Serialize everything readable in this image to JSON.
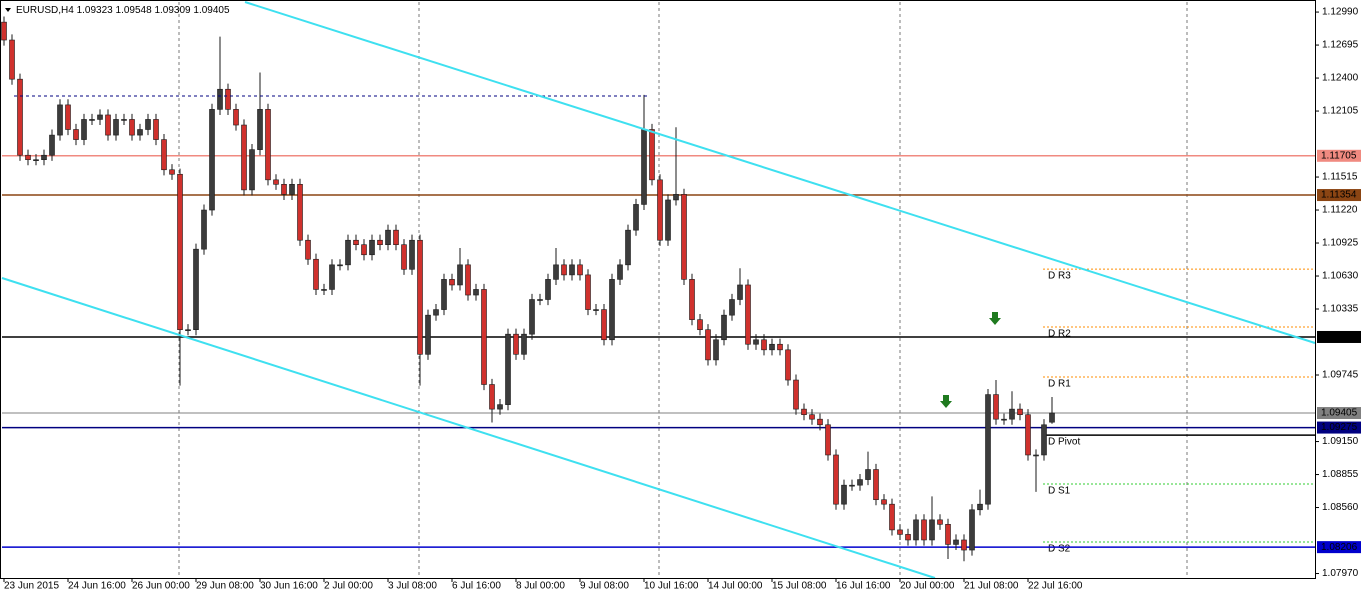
{
  "chart_data": {
    "type": "candlestick",
    "symbol": "EURUSD,H4",
    "up_color": "#3c3c3c",
    "down_color": "#d0312d",
    "outline_color": "#1a1a1a",
    "ylim": [
      1.0793,
      1.1308
    ],
    "yticks": [
      {
        "value": 1.1299,
        "label": "1.12990"
      },
      1.12695,
      {
        "value": 1.124,
        "label": "1.12400"
      },
      1.12105,
      1.11515,
      {
        "value": 1.1122,
        "label": "1.11220"
      },
      1.10925,
      {
        "value": 1.1063,
        "label": "1.10630"
      },
      1.10335,
      1.09745,
      {
        "value": 1.0915,
        "label": "1.09150"
      },
      1.08855,
      {
        "value": 1.0856,
        "label": "1.08560"
      },
      {
        "value": 1.0797,
        "label": "1.07970"
      }
    ],
    "categories": [
      "23 Jun 2015",
      null,
      null,
      null,
      null,
      null,
      null,
      null,
      "24 Jun 16:00",
      null,
      null,
      null,
      null,
      null,
      null,
      null,
      "26 Jun 00:00",
      null,
      null,
      null,
      null,
      null,
      null,
      null,
      "29 Jun 08:00",
      null,
      null,
      null,
      null,
      null,
      null,
      null,
      "30 Jun 16:00",
      null,
      null,
      null,
      null,
      null,
      null,
      null,
      "2 Jul 00:00",
      null,
      null,
      null,
      null,
      null,
      null,
      null,
      "3 Jul 08:00",
      null,
      null,
      null,
      null,
      null,
      null,
      null,
      "6 Jul 16:00",
      null,
      null,
      null,
      null,
      null,
      null,
      null,
      "8 Jul 00:00",
      null,
      null,
      null,
      null,
      null,
      null,
      null,
      "9 Jul 08:00",
      null,
      null,
      null,
      null,
      null,
      null,
      null,
      "10 Jul 16:00",
      null,
      null,
      null,
      null,
      null,
      null,
      null,
      "14 Jul 00:00",
      null,
      null,
      null,
      null,
      null,
      null,
      null,
      "15 Jul 08:00",
      null,
      null,
      null,
      null,
      null,
      null,
      null,
      "16 Jul 16:00",
      null,
      null,
      null,
      null,
      null,
      null,
      null,
      "20 Jul 00:00",
      null,
      null,
      null,
      null,
      null,
      null,
      null,
      "21 Jul 08:00",
      null,
      null,
      null,
      null,
      null,
      null,
      null,
      "22 Jul 16:00",
      null,
      null,
      null
    ],
    "open": [
      1.129,
      1.1274,
      1.1239,
      1.1171,
      1.1167,
      1.1167,
      1.1171,
      1.1189,
      1.1216,
      1.1194,
      1.1185,
      1.1203,
      1.1203,
      1.1207,
      1.1189,
      1.1203,
      1.1203,
      1.1189,
      1.1194,
      1.1203,
      1.1185,
      1.1158,
      1.1154,
      1.1015,
      1.1015,
      1.1087,
      1.1122,
      1.1212,
      1.123,
      1.1212,
      1.1198,
      1.114,
      1.1176,
      1.1212,
      1.1149,
      1.1145,
      1.1136,
      1.1145,
      1.1095,
      1.1078,
      1.1051,
      1.1051,
      1.1073,
      1.1073,
      1.1095,
      1.1091,
      1.1082,
      1.1095,
      1.1091,
      1.1104,
      1.1091,
      1.1069,
      1.1095,
      1.0993,
      1.1028,
      1.1033,
      1.106,
      1.1055,
      1.1073,
      1.1046,
      1.1051,
      1.0966,
      1.0944,
      1.0948,
      1.1011,
      1.0993,
      1.1011,
      1.1042,
      1.1042,
      1.106,
      1.1073,
      1.1064,
      1.1073,
      1.1064,
      1.1033,
      1.1033,
      1.1006,
      1.106,
      1.1073,
      1.1104,
      1.1127,
      1.1194,
      1.1149,
      1.1095,
      1.1131,
      1.1136,
      1.106,
      1.1024,
      1.1015,
      1.0988,
      1.1006,
      1.1028,
      1.1042,
      1.1055,
      1.1002,
      1.1006,
      1.0997,
      1.1002,
      1.0997,
      1.097,
      1.0944,
      1.0939,
      1.0935,
      1.093,
      1.0903,
      1.0859,
      1.0876,
      1.0876,
      1.0881,
      1.089,
      1.0863,
      1.0859,
      1.0836,
      1.0832,
      1.0827,
      1.0845,
      1.0827,
      1.0845,
      1.0841,
      1.0823,
      1.0827,
      1.0818,
      1.0854,
      1.0859,
      1.0957,
      1.0935,
      1.0935,
      1.0944,
      1.0939,
      1.0903,
      1.0903,
      1.09323
    ],
    "high": [
      1.1295,
      1.1279,
      1.1244,
      1.1176,
      1.1172,
      1.1176,
      1.1194,
      1.1221,
      1.1221,
      1.1199,
      1.1208,
      1.1208,
      1.1212,
      1.1212,
      1.1208,
      1.1208,
      1.1208,
      1.1199,
      1.1208,
      1.1208,
      1.119,
      1.1163,
      1.1159,
      1.102,
      1.1092,
      1.1127,
      1.1217,
      1.1277,
      1.1235,
      1.1217,
      1.1203,
      1.1181,
      1.1245,
      1.1217,
      1.1154,
      1.115,
      1.115,
      1.115,
      1.11,
      1.1083,
      1.1056,
      1.1078,
      1.1078,
      1.11,
      1.11,
      1.1096,
      1.11,
      1.11,
      1.1109,
      1.1109,
      1.1096,
      1.11,
      1.11,
      1.1033,
      1.1038,
      1.1065,
      1.1065,
      1.1088,
      1.1078,
      1.1056,
      1.1056,
      1.0971,
      1.0953,
      1.1016,
      1.1016,
      1.1016,
      1.1047,
      1.1047,
      1.1065,
      1.1088,
      1.1078,
      1.1078,
      1.1078,
      1.1069,
      1.1038,
      1.1038,
      1.1065,
      1.1078,
      1.1109,
      1.1132,
      1.1225,
      1.1199,
      1.1154,
      1.1136,
      1.1196,
      1.1141,
      1.1065,
      1.1029,
      1.102,
      1.1011,
      1.1033,
      1.1047,
      1.107,
      1.106,
      1.1011,
      1.1011,
      1.1007,
      1.1007,
      1.1002,
      1.0975,
      1.0949,
      1.0944,
      1.094,
      1.0935,
      1.0908,
      1.0881,
      1.0881,
      1.0886,
      1.0906,
      1.0895,
      1.0868,
      1.0864,
      1.0841,
      1.0837,
      1.085,
      1.085,
      1.0866,
      1.085,
      1.0846,
      1.0832,
      1.0832,
      1.0859,
      1.0872,
      1.0962,
      1.097,
      1.094,
      1.096,
      1.0949,
      1.0944,
      1.0908,
      1.0935,
      1.09548
    ],
    "low": [
      1.1269,
      1.1234,
      1.1166,
      1.1162,
      1.1162,
      1.1162,
      1.1166,
      1.1184,
      1.1189,
      1.118,
      1.118,
      1.1198,
      1.1198,
      1.1184,
      1.1184,
      1.1198,
      1.1184,
      1.1184,
      1.1189,
      1.118,
      1.1153,
      1.1149,
      1.0965,
      1.101,
      1.101,
      1.1082,
      1.1117,
      1.1207,
      1.1207,
      1.1193,
      1.1135,
      1.1135,
      1.1171,
      1.1144,
      1.114,
      1.1131,
      1.1131,
      1.109,
      1.1073,
      1.1046,
      1.1046,
      1.1046,
      1.1068,
      1.1068,
      1.1086,
      1.1077,
      1.1077,
      1.1086,
      1.1086,
      1.1086,
      1.1064,
      1.1064,
      1.0965,
      1.0988,
      1.1023,
      1.1028,
      1.105,
      1.105,
      1.1041,
      1.1041,
      1.0961,
      1.0932,
      1.0939,
      1.0943,
      1.0988,
      1.0988,
      1.1006,
      1.1037,
      1.1037,
      1.1055,
      1.1059,
      1.1059,
      1.1059,
      1.1028,
      1.1028,
      1.1001,
      1.1001,
      1.1055,
      1.1068,
      1.1099,
      1.1122,
      1.1144,
      1.109,
      1.109,
      1.1126,
      1.1055,
      1.1019,
      1.101,
      1.0983,
      1.0983,
      1.1001,
      1.1023,
      1.1037,
      1.0997,
      1.0997,
      1.0992,
      1.0992,
      1.0992,
      1.0965,
      1.0939,
      1.0934,
      1.093,
      1.0925,
      1.0898,
      1.0854,
      1.0854,
      1.0871,
      1.0871,
      1.0876,
      1.0858,
      1.0854,
      1.0831,
      1.0827,
      1.0822,
      1.0822,
      1.0822,
      1.0822,
      1.0836,
      1.081,
      1.0818,
      1.0808,
      1.0813,
      1.0849,
      1.0854,
      1.093,
      1.093,
      1.093,
      1.0934,
      1.0898,
      1.087,
      1.0898,
      1.09309
    ],
    "close": [
      1.1274,
      1.1239,
      1.1171,
      1.1167,
      1.1167,
      1.1171,
      1.1189,
      1.1216,
      1.1194,
      1.1185,
      1.1203,
      1.1203,
      1.1207,
      1.1189,
      1.1203,
      1.1203,
      1.1189,
      1.1194,
      1.1203,
      1.1185,
      1.1158,
      1.1154,
      1.1015,
      1.1015,
      1.1087,
      1.1122,
      1.1212,
      1.123,
      1.1212,
      1.1198,
      1.114,
      1.1176,
      1.1212,
      1.1149,
      1.1145,
      1.1136,
      1.1145,
      1.1095,
      1.1078,
      1.1051,
      1.1051,
      1.1073,
      1.1073,
      1.1095,
      1.1091,
      1.1082,
      1.1095,
      1.1091,
      1.1104,
      1.1091,
      1.1069,
      1.1095,
      1.0993,
      1.1028,
      1.1033,
      1.106,
      1.1055,
      1.1073,
      1.1046,
      1.1051,
      1.0966,
      1.0944,
      1.0948,
      1.1011,
      1.0993,
      1.1011,
      1.1042,
      1.1042,
      1.106,
      1.1073,
      1.1064,
      1.1073,
      1.1064,
      1.1033,
      1.1033,
      1.1006,
      1.106,
      1.1073,
      1.1104,
      1.1127,
      1.1194,
      1.1149,
      1.1095,
      1.1131,
      1.1136,
      1.106,
      1.1024,
      1.1015,
      1.0988,
      1.1006,
      1.1028,
      1.1042,
      1.1055,
      1.1002,
      1.1006,
      1.0997,
      1.1002,
      1.0997,
      1.097,
      1.0944,
      1.0939,
      1.0935,
      1.093,
      1.0903,
      1.0859,
      1.0876,
      1.0876,
      1.0881,
      1.089,
      1.0863,
      1.0859,
      1.0836,
      1.0832,
      1.0827,
      1.0845,
      1.0827,
      1.0845,
      1.0841,
      1.0823,
      1.0827,
      1.0818,
      1.0854,
      1.0859,
      1.0957,
      1.0935,
      1.0935,
      1.0944,
      1.0939,
      1.0903,
      1.0903,
      1.093,
      1.09405
    ],
    "levels": [
      {
        "value": 1.11705,
        "color": "#f08a80"
      },
      {
        "value": 1.11354,
        "color": "#8b4513"
      },
      {
        "value": 1.10085,
        "color": "#000000"
      },
      {
        "value": 1.09405,
        "color": "#808080"
      },
      {
        "value": 1.09275,
        "color": "#000080"
      },
      {
        "value": 1.08206,
        "color": "#0000cd"
      }
    ],
    "pivots": [
      {
        "name": "D R3",
        "value": 1.10692,
        "color": "#ff8c00"
      },
      {
        "name": "D R2",
        "value": 1.10174,
        "color": "#ff8c00"
      },
      {
        "name": "D R1",
        "value": 1.09727,
        "color": "#ff8c00"
      },
      {
        "name": "D Pivot",
        "value": 1.09208,
        "color": "#000000"
      },
      {
        "name": "D S1",
        "value": 1.0877,
        "color": "#32cd32"
      },
      {
        "name": "D S2",
        "value": 1.08252,
        "color": "#32cd32"
      }
    ]
  }
}
